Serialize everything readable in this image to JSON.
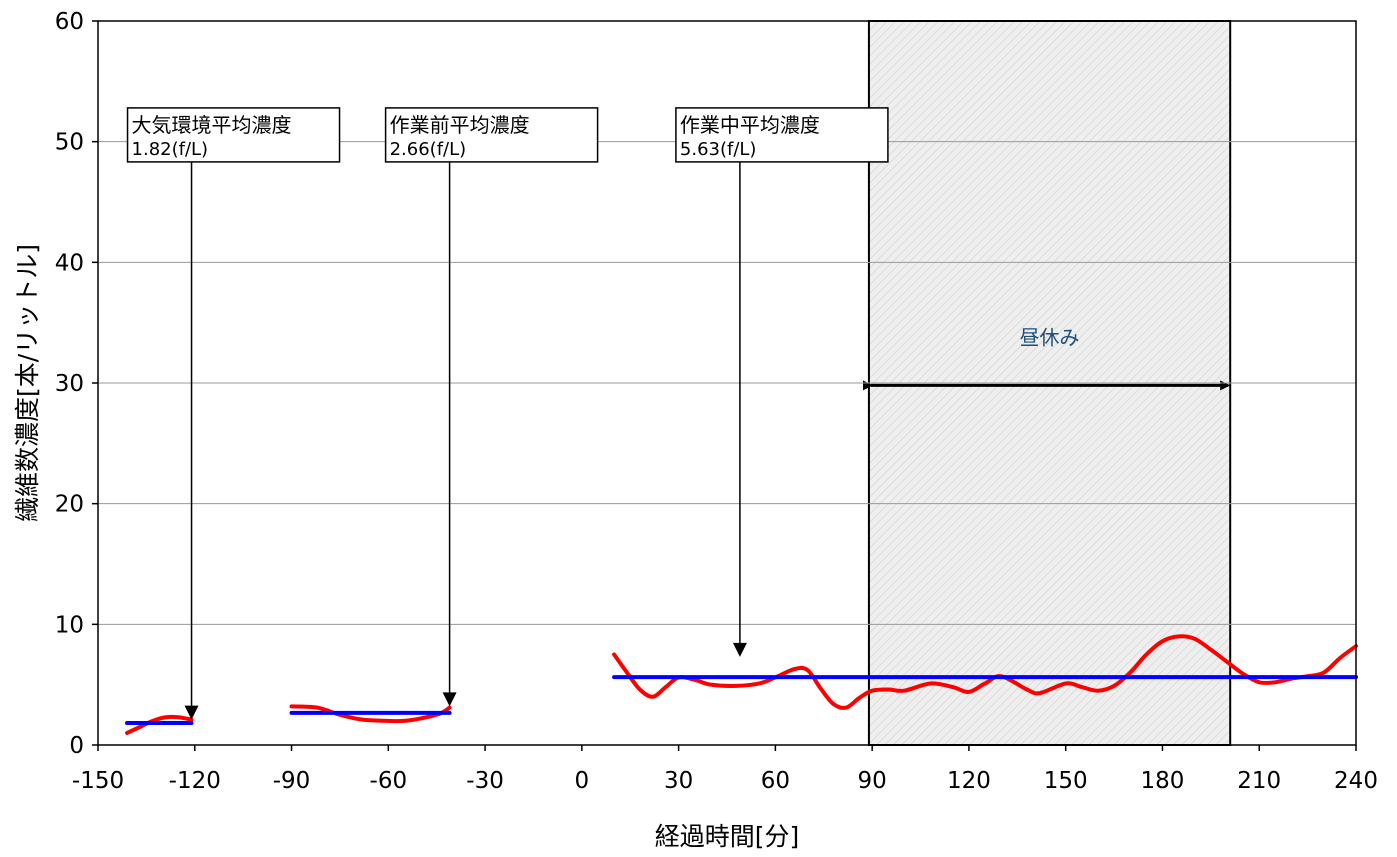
{
  "chart_data": {
    "type": "line",
    "title": "",
    "xlabel": "経過時間[分]",
    "ylabel": "繊維数濃度[本/リットル]",
    "xlim": [
      -150,
      240
    ],
    "ylim": [
      0,
      60
    ],
    "x_ticks": [
      -150,
      -120,
      -90,
      -60,
      -30,
      0,
      30,
      60,
      90,
      120,
      150,
      180,
      210,
      240
    ],
    "x_tick_labels": [
      "-150",
      "-120",
      "-90",
      "-60",
      "-30",
      "0",
      "30",
      "60",
      "90",
      "120",
      "150",
      "180",
      "210",
      "240"
    ],
    "y_ticks": [
      0,
      10,
      20,
      30,
      40,
      50,
      60
    ],
    "y_tick_labels": [
      "0",
      "10",
      "20",
      "30",
      "40",
      "50",
      "60"
    ],
    "grid": "horizontal",
    "series": [
      {
        "role": "measured",
        "color": "#ff0000",
        "segments": [
          [
            [
              -141,
              1.0
            ],
            [
              -137,
              1.5
            ],
            [
              -133,
              2.0
            ],
            [
              -129,
              2.3
            ],
            [
              -125,
              2.3
            ],
            [
              -121,
              2.1
            ]
          ],
          [
            [
              -90,
              3.2
            ],
            [
              -82,
              3.1
            ],
            [
              -75,
              2.5
            ],
            [
              -68,
              2.1
            ],
            [
              -60,
              2.0
            ],
            [
              -55,
              2.0
            ],
            [
              -50,
              2.2
            ],
            [
              -44,
              2.6
            ],
            [
              -41,
              3.1
            ]
          ],
          [
            [
              10,
              7.5
            ],
            [
              14,
              6.0
            ],
            [
              18,
              4.6
            ],
            [
              22,
              4.0
            ],
            [
              26,
              4.8
            ],
            [
              30,
              5.6
            ],
            [
              35,
              5.4
            ],
            [
              40,
              5.0
            ],
            [
              48,
              4.9
            ],
            [
              55,
              5.1
            ],
            [
              60,
              5.6
            ],
            [
              66,
              6.3
            ],
            [
              70,
              6.2
            ],
            [
              74,
              4.7
            ],
            [
              78,
              3.4
            ],
            [
              82,
              3.1
            ],
            [
              86,
              3.9
            ],
            [
              90,
              4.5
            ],
            [
              95,
              4.6
            ],
            [
              100,
              4.5
            ],
            [
              108,
              5.1
            ],
            [
              115,
              4.8
            ],
            [
              120,
              4.4
            ],
            [
              125,
              5.1
            ],
            [
              130,
              5.7
            ],
            [
              138,
              4.6
            ],
            [
              142,
              4.3
            ],
            [
              150,
              5.1
            ],
            [
              155,
              4.8
            ],
            [
              160,
              4.5
            ],
            [
              165,
              4.9
            ],
            [
              170,
              6.0
            ],
            [
              175,
              7.5
            ],
            [
              180,
              8.6
            ],
            [
              185,
              9.0
            ],
            [
              190,
              8.8
            ],
            [
              195,
              7.9
            ],
            [
              200,
              6.9
            ],
            [
              205,
              5.9
            ],
            [
              210,
              5.2
            ],
            [
              215,
              5.2
            ],
            [
              220,
              5.5
            ],
            [
              225,
              5.7
            ],
            [
              230,
              6.0
            ],
            [
              235,
              7.2
            ],
            [
              240,
              8.2
            ]
          ]
        ]
      },
      {
        "role": "average",
        "color": "#0000ff",
        "segments": [
          [
            [
              -141,
              1.82
            ],
            [
              -121,
              1.82
            ]
          ],
          [
            [
              -90,
              2.66
            ],
            [
              -41,
              2.66
            ]
          ],
          [
            [
              10,
              5.63
            ],
            [
              240,
              5.63
            ]
          ]
        ]
      }
    ],
    "lunch_break": {
      "label": "昼休み",
      "label_color": "#1f4e79",
      "x_start": 89,
      "x_end": 201,
      "fill": "#e8e8e8"
    },
    "annotations": [
      {
        "title": "大気環境平均濃度",
        "value": "1.82(f/L)",
        "arrow_x": -121,
        "arrow_to_y": 2.1
      },
      {
        "title": "作業前平均濃度",
        "value": "2.66(f/L)",
        "arrow_x": -41,
        "arrow_to_y": 3.2
      },
      {
        "title": "作業中平均濃度",
        "value": "5.63(f/L)",
        "arrow_x": 49,
        "arrow_to_y": 7.3
      }
    ]
  }
}
